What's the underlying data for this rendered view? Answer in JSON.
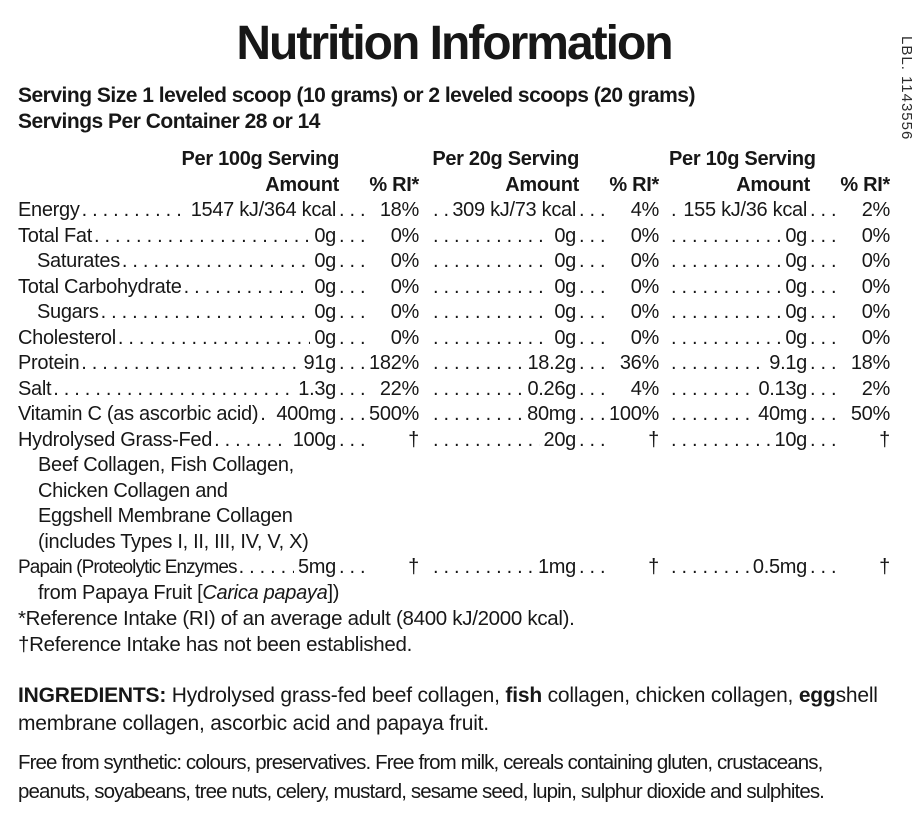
{
  "side_code": "LBL. 1143556",
  "title": "Nutrition Information",
  "serving": {
    "size_line": "Serving Size 1 leveled scoop (10 grams) or 2 leveled scoops (20 grams)",
    "per_container_line": "Servings Per Container 28 or 14"
  },
  "table": {
    "column_headers": [
      "Per 100g Serving",
      "Per 20g Serving",
      "Per 10g Serving"
    ],
    "amount_header": "Amount",
    "ri_header": "% RI*",
    "rows": [
      {
        "label": "Energy",
        "values": [
          {
            "amount": "1547 kJ/364 kcal",
            "ri": "18%"
          },
          {
            "amount": "309 kJ/73 kcal",
            "ri": "4%"
          },
          {
            "amount": "155 kJ/36 kcal",
            "ri": "2%"
          }
        ]
      },
      {
        "label": "Total Fat",
        "values": [
          {
            "amount": "0g",
            "ri": "0%"
          },
          {
            "amount": "0g",
            "ri": "0%"
          },
          {
            "amount": "0g",
            "ri": "0%"
          }
        ]
      },
      {
        "label": "Saturates",
        "indent": true,
        "values": [
          {
            "amount": "0g",
            "ri": "0%"
          },
          {
            "amount": "0g",
            "ri": "0%"
          },
          {
            "amount": "0g",
            "ri": "0%"
          }
        ]
      },
      {
        "label": "Total Carbohydrate",
        "values": [
          {
            "amount": "0g",
            "ri": "0%"
          },
          {
            "amount": "0g",
            "ri": "0%"
          },
          {
            "amount": "0g",
            "ri": "0%"
          }
        ]
      },
      {
        "label": "Sugars",
        "indent": true,
        "values": [
          {
            "amount": "0g",
            "ri": "0%"
          },
          {
            "amount": "0g",
            "ri": "0%"
          },
          {
            "amount": "0g",
            "ri": "0%"
          }
        ]
      },
      {
        "label": "Cholesterol",
        "values": [
          {
            "amount": "0g",
            "ri": "0%"
          },
          {
            "amount": "0g",
            "ri": "0%"
          },
          {
            "amount": "0g",
            "ri": "0%"
          }
        ]
      },
      {
        "label": "Protein",
        "values": [
          {
            "amount": "91g",
            "ri": "182%"
          },
          {
            "amount": "18.2g",
            "ri": "36%"
          },
          {
            "amount": "9.1g",
            "ri": "18%"
          }
        ]
      },
      {
        "label": "Salt",
        "values": [
          {
            "amount": "1.3g",
            "ri": "22%"
          },
          {
            "amount": "0.26g",
            "ri": "4%"
          },
          {
            "amount": "0.13g",
            "ri": "2%"
          }
        ]
      },
      {
        "label": "Vitamin C (as ascorbic acid)",
        "values": [
          {
            "amount": "400mg",
            "ri": "500%"
          },
          {
            "amount": "80mg",
            "ri": "100%"
          },
          {
            "amount": "40mg",
            "ri": "50%"
          }
        ]
      },
      {
        "label": "Hydrolysed Grass-Fed",
        "values": [
          {
            "amount": "100g",
            "ri": "†"
          },
          {
            "amount": "20g",
            "ri": "†"
          },
          {
            "amount": "10g",
            "ri": "†"
          }
        ],
        "sublines": [
          [
            {
              "text": "Beef Collagen, Fish Collagen,"
            }
          ],
          [
            {
              "text": "Chicken Collagen and"
            }
          ],
          [
            {
              "text": "Eggshell Membrane Collagen"
            }
          ],
          [
            {
              "text": "(includes Types I, II, III, IV, V, X)"
            }
          ]
        ]
      },
      {
        "label": "Papain (Proteolytic Enzymes",
        "condensed": true,
        "values": [
          {
            "amount": "5mg",
            "ri": "†"
          },
          {
            "amount": "1mg",
            "ri": "†"
          },
          {
            "amount": "0.5mg",
            "ri": "†"
          }
        ],
        "sublines": [
          [
            {
              "text": "from Papaya Fruit ["
            },
            {
              "text": "Carica papaya",
              "italic": true
            },
            {
              "text": "])"
            }
          ]
        ]
      }
    ],
    "footnotes": [
      "*Reference Intake (RI) of an average adult (8400 kJ/2000 kcal).",
      "†Reference Intake has not been established."
    ]
  },
  "ingredients": {
    "segments": [
      {
        "text": "INGREDIENTS: ",
        "bold": true
      },
      {
        "text": "Hydrolysed grass-fed beef collagen, "
      },
      {
        "text": "fish",
        "bold": true
      },
      {
        "text": " collagen, chicken collagen, "
      },
      {
        "text": "egg",
        "bold": true
      },
      {
        "text": "shell membrane collagen, ascorbic acid and papaya fruit."
      }
    ]
  },
  "free_from": {
    "lines": [
      "Free from synthetic: colours, preservatives. Free from milk, cereals containing gluten, crustaceans,",
      "peanuts, soyabeans, tree nuts, celery, mustard, sesame seed, lupin, sulphur dioxide and sulphites."
    ]
  },
  "colors": {
    "text": "#171717",
    "background": "#ffffff"
  }
}
